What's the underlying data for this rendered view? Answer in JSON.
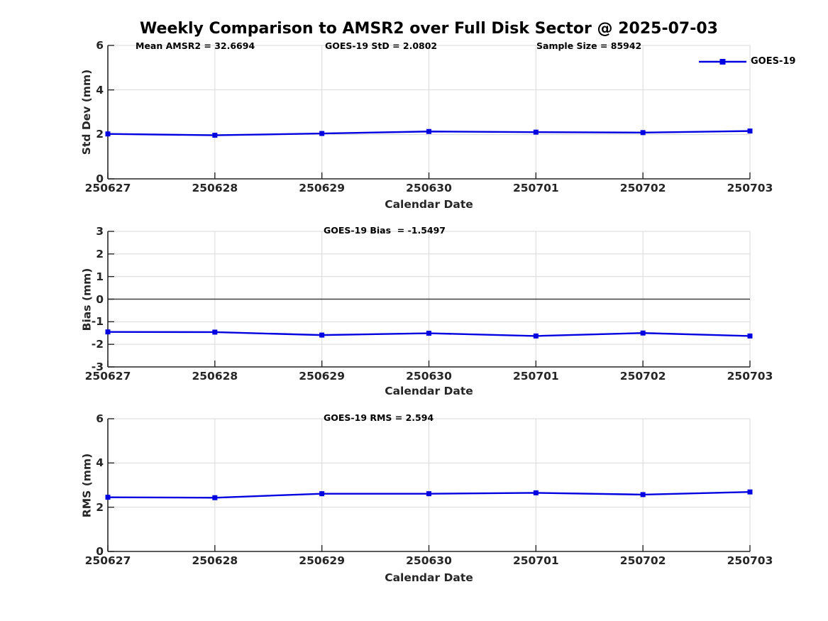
{
  "title": "Weekly Comparison to AMSR2 over Full Disk Sector @ 2025-07-03",
  "legend": {
    "label": "GOES-19",
    "position": "top-right-outside"
  },
  "colors": {
    "series": "#0000e0",
    "grid": "#d9d9d9",
    "axis": "#262626",
    "zero_line": "#404040",
    "tick_text": "#262626",
    "text": "#000000",
    "background": "#ffffff"
  },
  "chart_data": [
    {
      "type": "line",
      "annotations": [
        "Mean AMSR2 = 32.6694",
        "GOES-19 StD = 2.0802",
        "Sample Size = 85942"
      ],
      "categories": [
        "250627",
        "250628",
        "250629",
        "250630",
        "250701",
        "250702",
        "250703"
      ],
      "series": [
        {
          "name": "GOES-19",
          "values": [
            2.02,
            1.96,
            2.04,
            2.13,
            2.1,
            2.08,
            2.15
          ]
        }
      ],
      "xlabel": "Calendar Date",
      "ylabel": "Std Dev (mm)",
      "ylim": [
        0,
        6
      ],
      "yticks": [
        0,
        2,
        4,
        6
      ],
      "grid": true,
      "zero_line": false,
      "marker": "square",
      "legend_visible": true
    },
    {
      "type": "line",
      "annotations": [
        "GOES-19 Bias  = -1.5497"
      ],
      "categories": [
        "250627",
        "250628",
        "250629",
        "250630",
        "250701",
        "250702",
        "250703"
      ],
      "series": [
        {
          "name": "GOES-19",
          "values": [
            -1.45,
            -1.46,
            -1.59,
            -1.51,
            -1.63,
            -1.5,
            -1.63
          ]
        }
      ],
      "xlabel": "Calendar Date",
      "ylabel": "Bias (mm)",
      "ylim": [
        -3,
        3
      ],
      "yticks": [
        -3,
        -2,
        -1,
        0,
        1,
        2,
        3
      ],
      "grid": true,
      "zero_line": true,
      "marker": "square",
      "legend_visible": false
    },
    {
      "type": "line",
      "annotations": [
        "GOES-19 RMS = 2.594"
      ],
      "categories": [
        "250627",
        "250628",
        "250629",
        "250630",
        "250701",
        "250702",
        "250703"
      ],
      "series": [
        {
          "name": "GOES-19",
          "values": [
            2.45,
            2.43,
            2.61,
            2.61,
            2.65,
            2.57,
            2.69
          ]
        }
      ],
      "xlabel": "Calendar Date",
      "ylabel": "RMS (mm)",
      "ylim": [
        0,
        6
      ],
      "yticks": [
        0,
        2,
        4,
        6
      ],
      "grid": true,
      "zero_line": false,
      "marker": "square",
      "legend_visible": true
    }
  ]
}
